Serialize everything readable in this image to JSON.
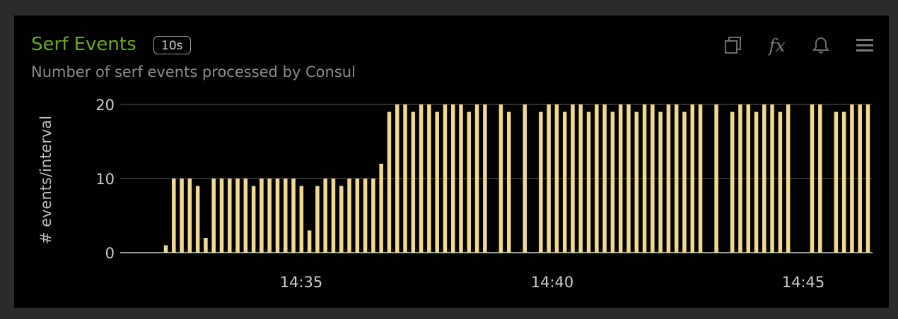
{
  "panel": {
    "title": "Serf Events",
    "badge": "10s",
    "subtitle": "Number of serf events processed by Consul",
    "title_color": "#6ca81c",
    "icons": [
      "copy-icon",
      "function-icon",
      "bell-icon",
      "menu-icon"
    ]
  },
  "chart_data": {
    "type": "bar",
    "title": "",
    "xlabel": "",
    "ylabel": "# events/interval",
    "ylim": [
      0,
      20
    ],
    "yticks": [
      0,
      10,
      20
    ],
    "xticks": [
      "14:35",
      "14:40",
      "14:45"
    ],
    "bar_color": "#f2d98e",
    "grid": true,
    "values": [
      1,
      10,
      10,
      10,
      9,
      2,
      10,
      10,
      10,
      10,
      10,
      9,
      10,
      10,
      10,
      10,
      10,
      9,
      3,
      9,
      10,
      10,
      9,
      10,
      10,
      10,
      10,
      12,
      19,
      20,
      20,
      19,
      20,
      20,
      19,
      20,
      20,
      20,
      19,
      20,
      20,
      null,
      20,
      19,
      null,
      20,
      null,
      19,
      20,
      20,
      19,
      20,
      20,
      19,
      20,
      20,
      19,
      20,
      20,
      19,
      20,
      20,
      19,
      20,
      20,
      19,
      20,
      20,
      null,
      20,
      null,
      19,
      20,
      20,
      19,
      20,
      20,
      19,
      20,
      null,
      null,
      20,
      20,
      null,
      19,
      19,
      20,
      20,
      20
    ]
  }
}
